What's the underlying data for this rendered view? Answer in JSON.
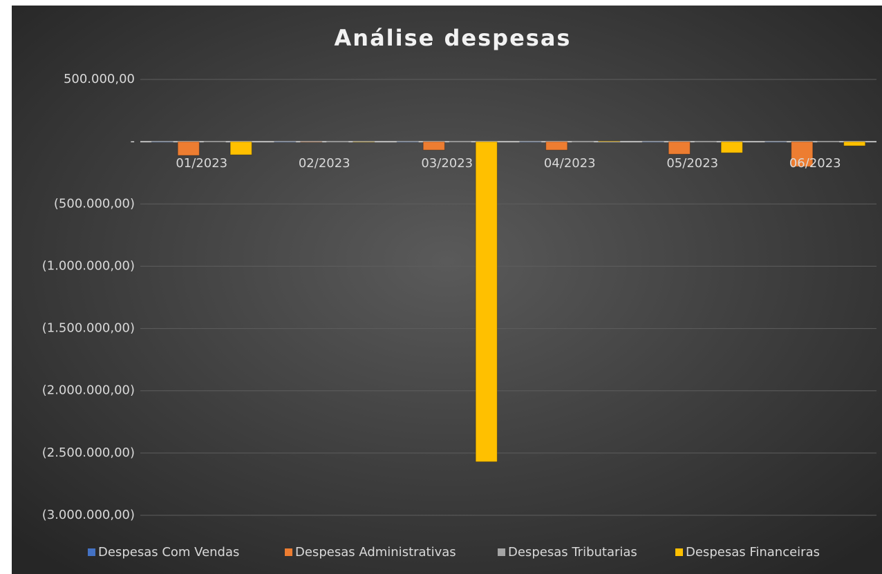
{
  "chart_data": {
    "type": "bar",
    "title": "Análise despesas",
    "categories": [
      "01/2023",
      "02/2023",
      "03/2023",
      "04/2023",
      "05/2023",
      "06/2023"
    ],
    "series": [
      {
        "name": "Despesas Com Vendas",
        "color": "#4472c4",
        "values": [
          0,
          0,
          0,
          0,
          0,
          0
        ]
      },
      {
        "name": "Despesas Administrativas",
        "color": "#ed7d31",
        "values": [
          -110000,
          -2000,
          -67000,
          -67000,
          -100000,
          -200000
        ]
      },
      {
        "name": "Despesas Tributarias",
        "color": "#a5a5a5",
        "values": [
          -5000,
          0,
          -3000,
          -2000,
          -3000,
          -5000
        ]
      },
      {
        "name": "Despesas Financeiras",
        "color": "#ffc000",
        "values": [
          -105000,
          0,
          -2570000,
          5000,
          -89000,
          -33000
        ]
      }
    ],
    "ylim": [
      -3000000,
      500000
    ],
    "yticks": [
      {
        "value": 500000,
        "label": "500.000,00"
      },
      {
        "value": 0,
        "label": "-"
      },
      {
        "value": -500000,
        "label": "(500.000,00)"
      },
      {
        "value": -1000000,
        "label": "(1.000.000,00)"
      },
      {
        "value": -1500000,
        "label": "(1.500.000,00)"
      },
      {
        "value": -2000000,
        "label": "(2.000.000,00)"
      },
      {
        "value": -2500000,
        "label": "(2.500.000,00)"
      },
      {
        "value": -3000000,
        "label": "(3.000.000,00)"
      }
    ],
    "grid": true,
    "legend": "bottom"
  }
}
